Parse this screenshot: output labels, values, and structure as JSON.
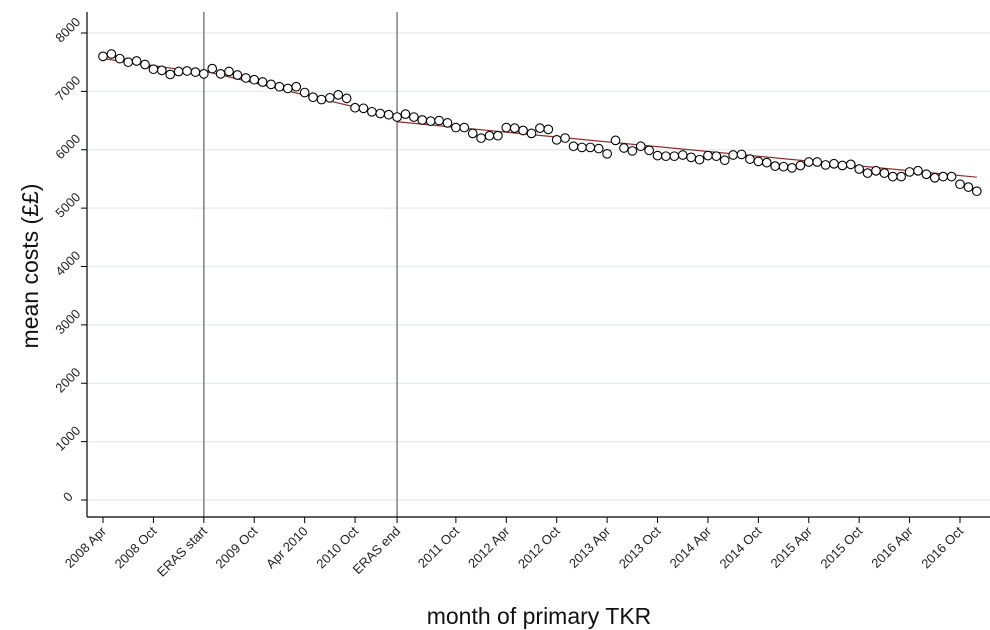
{
  "chart_data": {
    "type": "scatter",
    "title": "",
    "xlabel": "month of primary TKR",
    "ylabel": "mean costs (££)",
    "ylim": [
      0,
      8000
    ],
    "yticks": [
      0,
      1000,
      2000,
      3000,
      4000,
      5000,
      6000,
      7000,
      8000
    ],
    "grid": true,
    "x_units": "months, first = 2008 Apr",
    "xticks": [
      {
        "month": 0,
        "label": "2008 Apr"
      },
      {
        "month": 6,
        "label": "2008 Oct"
      },
      {
        "month": 12,
        "label": "ERAS start"
      },
      {
        "month": 18,
        "label": "2009 Oct"
      },
      {
        "month": 24,
        "label": "Apr 2010"
      },
      {
        "month": 30,
        "label": "2010 Oct"
      },
      {
        "month": 35,
        "label": "ERAS end"
      },
      {
        "month": 42,
        "label": "2011 Oct"
      },
      {
        "month": 48,
        "label": "2012 Apr"
      },
      {
        "month": 54,
        "label": "2012 Oct"
      },
      {
        "month": 60,
        "label": "2013 Apr"
      },
      {
        "month": 66,
        "label": "2013 Oct"
      },
      {
        "month": 72,
        "label": "2014 Apr"
      },
      {
        "month": 78,
        "label": "2014 Oct"
      },
      {
        "month": 84,
        "label": "2015 Apr"
      },
      {
        "month": 90,
        "label": "2015 Oct"
      },
      {
        "month": 96,
        "label": "2016 Apr"
      },
      {
        "month": 102,
        "label": "2016 Oct"
      }
    ],
    "vlines": [
      {
        "month": 12,
        "label": "ERAS start"
      },
      {
        "month": 35,
        "label": "ERAS end"
      }
    ],
    "series": [
      {
        "name": "",
        "marker": "hollow-circle",
        "values": [
          7600,
          7640,
          7560,
          7500,
          7520,
          7460,
          7380,
          7360,
          7290,
          7340,
          7350,
          7330,
          7300,
          7390,
          7300,
          7340,
          7280,
          7230,
          7200,
          7160,
          7120,
          7080,
          7050,
          7080,
          6980,
          6900,
          6860,
          6890,
          6940,
          6880,
          6720,
          6710,
          6650,
          6620,
          6600,
          6560,
          6610,
          6560,
          6510,
          6490,
          6500,
          6460,
          6380,
          6380,
          6280,
          6200,
          6240,
          6240,
          6380,
          6370,
          6330,
          6280,
          6370,
          6350,
          6170,
          6200,
          6060,
          6040,
          6040,
          6020,
          5930,
          6160,
          6030,
          5980,
          6060,
          5990,
          5900,
          5890,
          5890,
          5910,
          5870,
          5830,
          5900,
          5890,
          5820,
          5910,
          5920,
          5840,
          5800,
          5780,
          5720,
          5710,
          5690,
          5730,
          5790,
          5790,
          5740,
          5760,
          5730,
          5750,
          5670,
          5600,
          5640,
          5600,
          5540,
          5540,
          5620,
          5640,
          5580,
          5520,
          5540,
          5540,
          5410,
          5360,
          5290
        ]
      }
    ],
    "trend_lines": [
      {
        "segment": "pre-ERAS",
        "from": {
          "month": 0,
          "value": 7560
        },
        "to": {
          "month": 12,
          "value": 7320
        }
      },
      {
        "segment": "ERAS",
        "from": {
          "month": 12,
          "value": 7350
        },
        "to": {
          "month": 35,
          "value": 6560
        }
      },
      {
        "segment": "post-ERAS",
        "from": {
          "month": 35,
          "value": 6480
        },
        "to": {
          "month": 104,
          "value": 5530
        }
      }
    ],
    "colors": {
      "marker_stroke": "#000000",
      "marker_fill": "#ffffff",
      "trend": "#8b2e2e",
      "vline": "#888888",
      "grid": "#e3ebec"
    }
  }
}
